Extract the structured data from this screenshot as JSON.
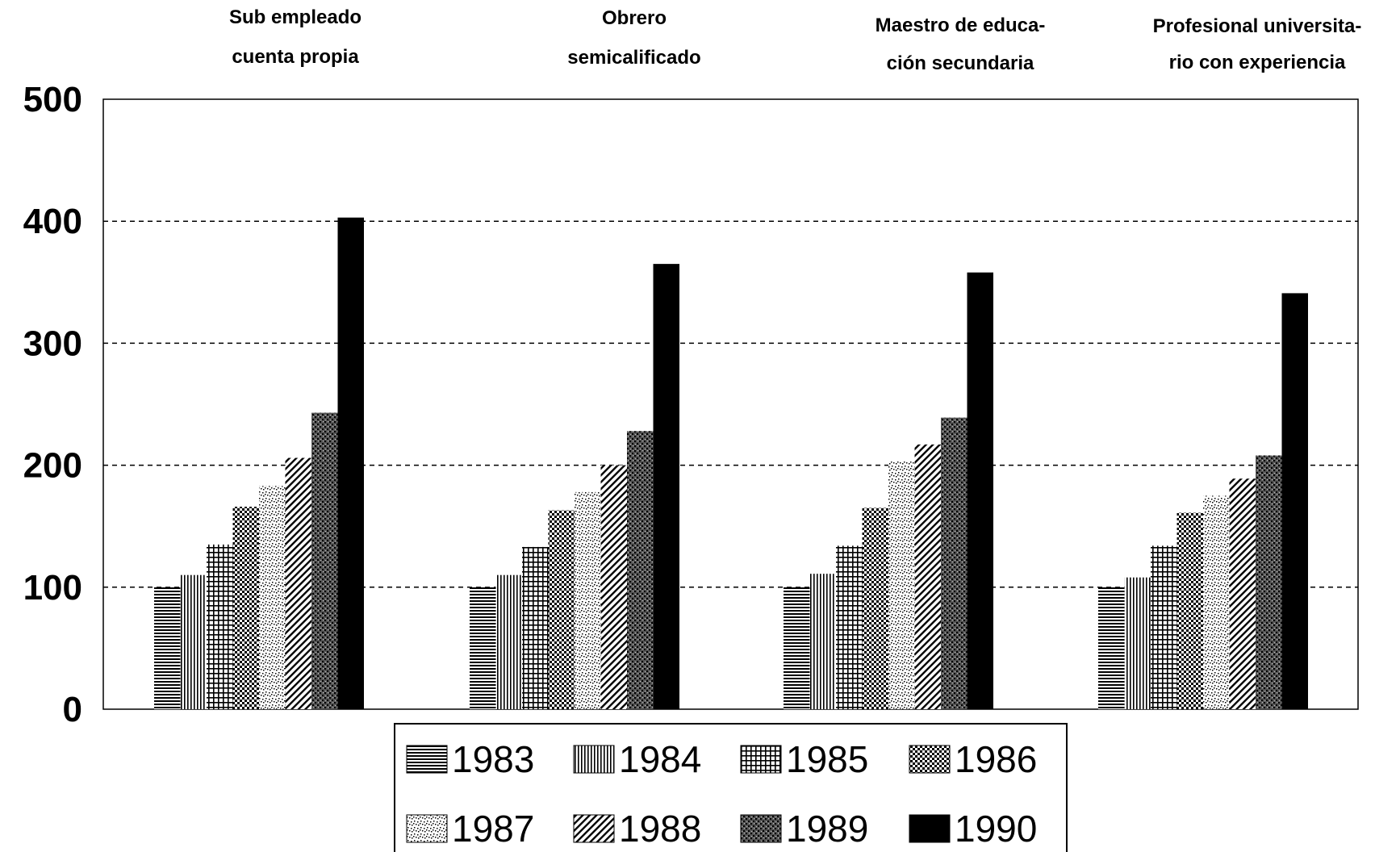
{
  "chart_data": {
    "type": "bar",
    "categories": [
      [
        "Sub empleado",
        "cuenta propia"
      ],
      [
        "Obrero",
        "semicalificado"
      ],
      [
        "Maestro de educa-",
        "ción secundaria"
      ],
      [
        "Profesional universita-",
        "rio con experiencia"
      ]
    ],
    "series": [
      {
        "name": "1983",
        "pattern": "hlines",
        "values": [
          100,
          100,
          100,
          100
        ]
      },
      {
        "name": "1984",
        "pattern": "vlines",
        "values": [
          110,
          110,
          111,
          108
        ]
      },
      {
        "name": "1985",
        "pattern": "grid",
        "values": [
          135,
          133,
          134,
          134
        ]
      },
      {
        "name": "1986",
        "pattern": "dots",
        "values": [
          166,
          163,
          165,
          161
        ]
      },
      {
        "name": "1987",
        "pattern": "stipple",
        "values": [
          183,
          178,
          203,
          175
        ]
      },
      {
        "name": "1988",
        "pattern": "diag",
        "values": [
          206,
          200,
          217,
          189
        ]
      },
      {
        "name": "1989",
        "pattern": "darkstipple",
        "values": [
          243,
          228,
          239,
          208
        ]
      },
      {
        "name": "1990",
        "pattern": "solid",
        "values": [
          403,
          365,
          358,
          341
        ]
      }
    ],
    "yticks": [
      "0",
      "100",
      "200",
      "300",
      "400",
      "500"
    ],
    "ylim": [
      0,
      500
    ],
    "grid": "dashed-horizontal",
    "legend_position": "bottom-center"
  }
}
